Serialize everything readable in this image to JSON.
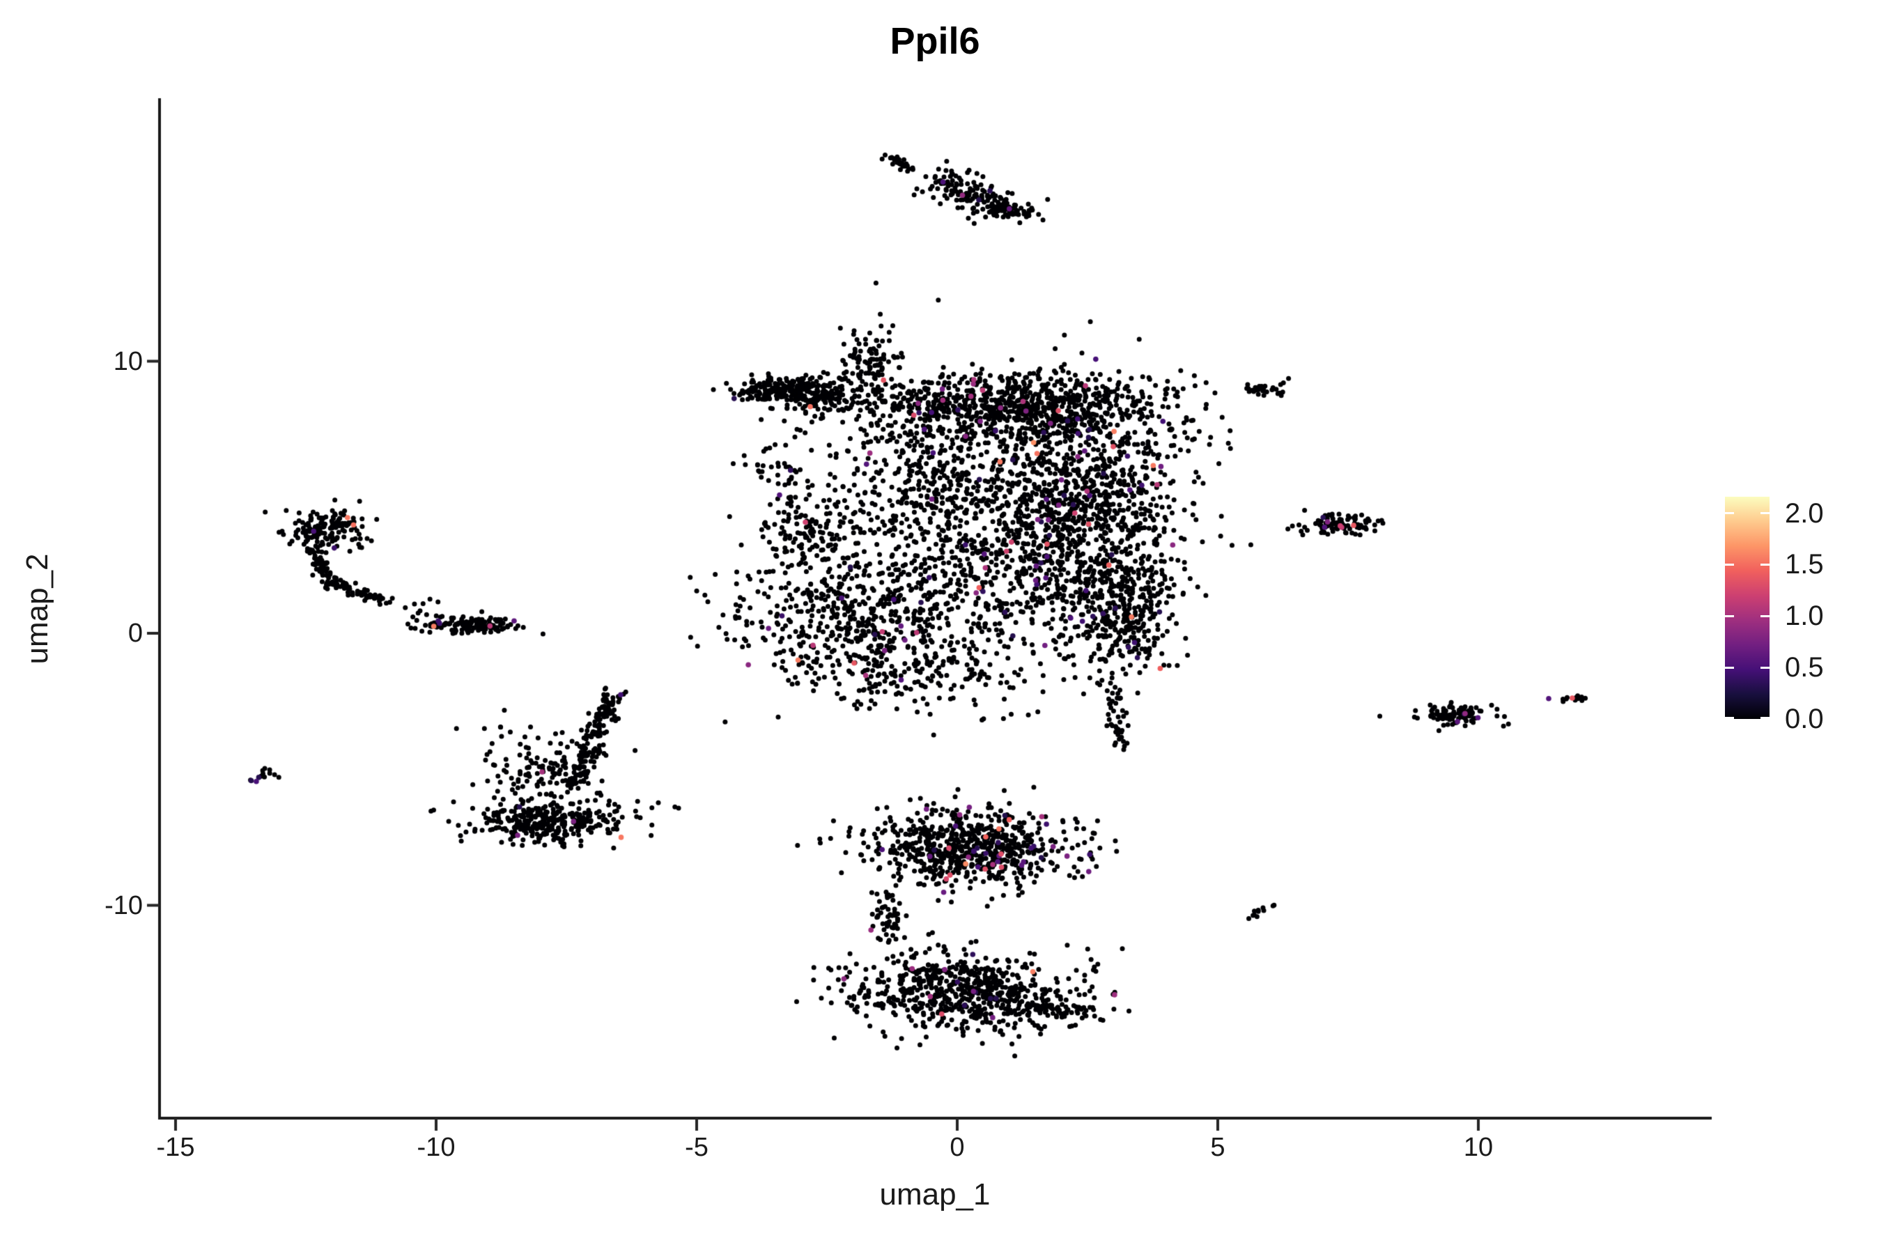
{
  "title": "Ppil6",
  "axes": {
    "x": {
      "label": "umap_1",
      "ticks": [
        {
          "v": -15,
          "label": "-15"
        },
        {
          "v": -10,
          "label": "-10"
        },
        {
          "v": -5,
          "label": "-5"
        },
        {
          "v": 0,
          "label": "0"
        },
        {
          "v": 5,
          "label": "5"
        },
        {
          "v": 10,
          "label": "10"
        }
      ]
    },
    "y": {
      "label": "umap_2",
      "ticks": [
        {
          "v": 10,
          "label": "10"
        },
        {
          "v": 0,
          "label": "0"
        },
        {
          "v": -10,
          "label": "-10"
        }
      ]
    }
  },
  "legend": {
    "tick_values": [
      2.0,
      1.5,
      1.0,
      0.5,
      0.0
    ],
    "tick_labels": [
      "2.0",
      "1.5",
      "1.0",
      "0.5",
      "0.0"
    ],
    "scale_max": 2.16,
    "colormap_name": "magma",
    "colormap_stops": [
      "#000004",
      "#180f3e",
      "#451077",
      "#721f81",
      "#9f2f7f",
      "#cd4071",
      "#f1605d",
      "#fd9567",
      "#feca8d",
      "#fcfdbf"
    ]
  },
  "chart_data": {
    "type": "scatter",
    "title": "Ppil6",
    "xlabel": "umap_1",
    "ylabel": "umap_2",
    "xlim": [
      -15.3,
      14.5
    ],
    "ylim": [
      -17.8,
      19.6
    ],
    "x_ticks": [
      -15,
      -10,
      -5,
      0,
      5,
      10
    ],
    "y_ticks": [
      -10,
      0,
      10
    ],
    "grid": false,
    "legend_position": "right",
    "point_color_zero": "#000004",
    "point_radius_px": 3.5,
    "seed": 42,
    "clusters": [
      {
        "id": "top-dash",
        "kind": "strip",
        "x1": -1.32,
        "y1": 17.5,
        "x2": -0.9,
        "y2": 17.05,
        "w": 0.06,
        "n": 30,
        "cf": 0
      },
      {
        "id": "top-blob",
        "kind": "strip",
        "x1": -0.2,
        "y1": 16.8,
        "x2": 0.75,
        "y2": 15.6,
        "w": 0.25,
        "n": 130,
        "cf": 0.02
      },
      {
        "id": "top-blob-hook",
        "kind": "strip",
        "x1": 0.75,
        "y1": 15.6,
        "x2": 1.35,
        "y2": 15.35,
        "w": 0.18,
        "n": 60,
        "cf": 0.02
      },
      {
        "id": "top-sparse",
        "kind": "gauss",
        "cx": -0.55,
        "cy": 16.4,
        "sx": 0.3,
        "sy": 0.25,
        "n": 8,
        "cf": 0
      },
      {
        "id": "top-noise",
        "kind": "gauss",
        "cx": -0.9,
        "cy": 12.3,
        "sx": 0.5,
        "sy": 0.7,
        "n": 5,
        "cf": 0
      },
      {
        "id": "c-left-arm",
        "kind": "gauss",
        "cx": -3.35,
        "cy": 8.95,
        "sx": 0.5,
        "sy": 0.22,
        "n": 230,
        "cf": 0.02
      },
      {
        "id": "c-arm-trail",
        "kind": "gauss",
        "cx": -2.6,
        "cy": 8.55,
        "sx": 0.45,
        "sy": 0.35,
        "n": 90,
        "cf": 0.02
      },
      {
        "id": "c-arm-drip",
        "kind": "gauss",
        "cx": -3.5,
        "cy": 6.1,
        "sx": 0.35,
        "sy": 0.6,
        "n": 40,
        "cf": 0.02
      },
      {
        "id": "c-peak",
        "kind": "gauss",
        "cx": -1.75,
        "cy": 9.9,
        "sx": 0.32,
        "sy": 0.6,
        "n": 110,
        "cf": 0.02
      },
      {
        "id": "c-top-band",
        "kind": "gauss",
        "cx": 1.0,
        "cy": 8.3,
        "sx": 1.55,
        "sy": 0.62,
        "n": 850,
        "cf": 0.03
      },
      {
        "id": "c-right-body",
        "kind": "gauss",
        "cx": 2.25,
        "cy": 4.4,
        "sx": 1.05,
        "sy": 2.2,
        "n": 1250,
        "cf": 0.035
      },
      {
        "id": "c-mid-upper",
        "kind": "gauss",
        "cx": -0.5,
        "cy": 5.7,
        "sx": 0.95,
        "sy": 1.25,
        "n": 380,
        "cf": 0.03
      },
      {
        "id": "c-left-detached",
        "kind": "gauss",
        "cx": -2.8,
        "cy": 3.9,
        "sx": 0.5,
        "sy": 0.7,
        "n": 120,
        "cf": 0.03
      },
      {
        "id": "c-mid-sparse",
        "kind": "gauss",
        "cx": 0.15,
        "cy": 2.2,
        "sx": 1.45,
        "sy": 1.5,
        "n": 300,
        "cf": 0.035
      },
      {
        "id": "c-bl-wing",
        "kind": "gauss",
        "cx": -1.9,
        "cy": 0.5,
        "sx": 1.2,
        "sy": 1.4,
        "n": 550,
        "cf": 0.03
      },
      {
        "id": "c-bottom-edge",
        "kind": "gauss",
        "cx": -0.6,
        "cy": -1.6,
        "sx": 1.2,
        "sy": 0.7,
        "n": 150,
        "cf": 0.03
      },
      {
        "id": "c-bottom-knob",
        "kind": "gauss",
        "cx": 3.25,
        "cy": 0.6,
        "sx": 0.45,
        "sy": 1.05,
        "n": 300,
        "cf": 0.04
      },
      {
        "id": "c-tail",
        "kind": "strip",
        "x1": 3.0,
        "y1": -2.2,
        "x2": 3.15,
        "y2": -4.3,
        "w": 0.1,
        "n": 40,
        "cf": 0.05
      },
      {
        "id": "b-upper-lobe",
        "kind": "gauss",
        "cx": 0.3,
        "cy": -7.9,
        "sx": 0.95,
        "sy": 0.7,
        "rot": -4,
        "n": 720,
        "cf": 0.06
      },
      {
        "id": "b-neck",
        "kind": "strip",
        "x1": -1.4,
        "y1": -9.6,
        "x2": -1.3,
        "y2": -11.3,
        "w": 0.15,
        "n": 55,
        "cf": 0.02
      },
      {
        "id": "b-lower-lobe",
        "kind": "gauss",
        "cx": 0.15,
        "cy": -13.2,
        "sx": 1.15,
        "sy": 0.75,
        "rot": -8,
        "n": 680,
        "cf": 0.03
      },
      {
        "id": "b-lower-tail",
        "kind": "strip",
        "x1": 1.3,
        "y1": -13.6,
        "x2": 2.4,
        "y2": -13.95,
        "w": 0.18,
        "n": 60,
        "cf": 0.02
      },
      {
        "id": "hook-head",
        "kind": "gauss",
        "cx": -12.05,
        "cy": 3.85,
        "sx": 0.38,
        "sy": 0.38,
        "n": 150,
        "cf": 0.025
      },
      {
        "id": "hook-arc-1",
        "kind": "strip",
        "x1": -12.35,
        "y1": 3.1,
        "x2": -12.05,
        "y2": 1.9,
        "w": 0.09,
        "n": 60,
        "cf": 0
      },
      {
        "id": "hook-arc-2",
        "kind": "strip",
        "x1": -12.05,
        "y1": 1.9,
        "x2": -10.95,
        "y2": 1.15,
        "w": 0.09,
        "n": 70,
        "cf": 0
      },
      {
        "id": "stepping-stones",
        "kind": "gauss",
        "cx": -10.4,
        "cy": 0.95,
        "sx": 0.18,
        "sy": 0.18,
        "n": 9,
        "cf": 0
      },
      {
        "id": "stepping-stones-2",
        "kind": "gauss",
        "cx": -9.9,
        "cy": 0.6,
        "sx": 0.15,
        "sy": 0.12,
        "n": 6,
        "cf": 0
      },
      {
        "id": "oval-blob",
        "kind": "gauss",
        "cx": -9.3,
        "cy": 0.3,
        "sx": 0.5,
        "sy": 0.16,
        "n": 130,
        "cf": 0.03
      },
      {
        "id": "far-left-tiny",
        "kind": "gauss",
        "cx": -13.35,
        "cy": -5.2,
        "sx": 0.14,
        "sy": 0.13,
        "n": 12,
        "cf": 0.08
      },
      {
        "id": "tri-spine",
        "kind": "strip",
        "x1": -6.55,
        "y1": -2.1,
        "x2": -7.35,
        "y2": -5.6,
        "w": 0.12,
        "n": 150,
        "cf": 0.01
      },
      {
        "id": "tri-base",
        "kind": "gauss",
        "cx": -7.7,
        "cy": -6.9,
        "sx": 0.8,
        "sy": 0.42,
        "n": 280,
        "cf": 0.02
      },
      {
        "id": "tri-base-left",
        "kind": "gauss",
        "cx": -8.3,
        "cy": -7.0,
        "sx": 0.35,
        "sy": 0.35,
        "n": 60,
        "cf": 0.02
      },
      {
        "id": "tri-fill",
        "kind": "gauss",
        "cx": -7.9,
        "cy": -4.9,
        "sx": 0.6,
        "sy": 0.75,
        "n": 130,
        "cf": 0.02
      },
      {
        "id": "sat-ne",
        "kind": "gauss",
        "cx": 5.85,
        "cy": 8.95,
        "sx": 0.22,
        "sy": 0.1,
        "n": 28,
        "cf": 0
      },
      {
        "id": "sat-e",
        "kind": "gauss",
        "cx": 7.3,
        "cy": 4.0,
        "sx": 0.35,
        "sy": 0.2,
        "n": 85,
        "cf": 0.03
      },
      {
        "id": "sat-se",
        "kind": "gauss",
        "cx": 9.55,
        "cy": -3.0,
        "sx": 0.42,
        "sy": 0.18,
        "n": 95,
        "cf": 0.02
      },
      {
        "id": "sat-far-e",
        "kind": "gauss",
        "cx": 11.85,
        "cy": -2.4,
        "sx": 0.13,
        "sy": 0.09,
        "n": 12,
        "cf": 0.1
      },
      {
        "id": "sat-s",
        "kind": "strip",
        "x1": 5.6,
        "y1": -10.4,
        "x2": 6.1,
        "y2": -10.0,
        "w": 0.08,
        "n": 11,
        "cf": 0
      }
    ],
    "highlight_points": [
      {
        "x": -11.7,
        "y": 4.25,
        "v": 1.55
      },
      {
        "x": -12.35,
        "y": 3.75,
        "v": 0.5
      },
      {
        "x": 7.35,
        "y": 3.95,
        "v": 1.2
      },
      {
        "x": 7.05,
        "y": 3.9,
        "v": 0.55
      },
      {
        "x": -6.45,
        "y": -7.5,
        "v": 1.55
      },
      {
        "x": 11.35,
        "y": -2.4,
        "v": 0.55
      },
      {
        "x": 9.6,
        "y": -3.25,
        "v": 0.6
      },
      {
        "x": 0.1,
        "y": 16.1,
        "v": 0.9
      },
      {
        "x": 1.0,
        "y": 15.6,
        "v": 0.65
      },
      {
        "x": -13.45,
        "y": -5.45,
        "v": 0.5
      },
      {
        "x": -0.75,
        "y": 8.45,
        "v": 0.85
      },
      {
        "x": 0.85,
        "y": -8.6,
        "v": 1.3
      }
    ]
  }
}
